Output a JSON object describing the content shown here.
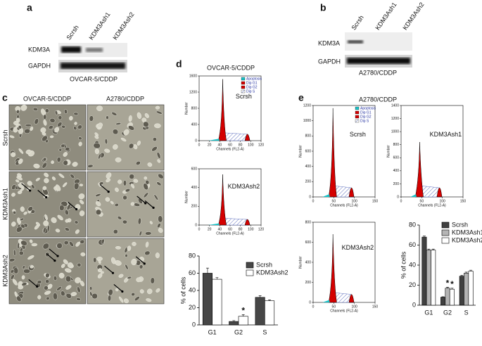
{
  "panel_a": {
    "letter": "a",
    "lanes": [
      "Scrsh",
      "KDM3Ash1",
      "KDM3Ash2"
    ],
    "rows": [
      "KDM3A",
      "GAPDH"
    ],
    "caption": "OVCAR-5/CDDP"
  },
  "panel_b": {
    "letter": "b",
    "lanes": [
      "Scrsh",
      "KDM3Ash1",
      "KDM3Ash2"
    ],
    "rows": [
      "KDM3A",
      "GAPDH"
    ],
    "caption": "A2780/CDDP"
  },
  "panel_c": {
    "letter": "c",
    "columns": [
      "OVCAR-5/CDDP",
      "A2780/CDDP"
    ],
    "rows": [
      "Scrsh",
      "KDM3Ash1",
      "KDM3Ash2"
    ]
  },
  "panel_d": {
    "letter": "d",
    "title": "OVCAR-5/CDDP",
    "histogram_legend": [
      "Apoptosis",
      "Dip G1",
      "Dip G2",
      "Dip S"
    ],
    "histograms": [
      {
        "label": "Scrsh",
        "xlabel": "Channels (FL2-A)",
        "ylabel": "Number",
        "xticks": [
          0,
          20,
          40,
          60,
          80,
          100,
          120
        ],
        "yticks": [
          0,
          400,
          800,
          1200,
          1600
        ]
      },
      {
        "label": "KDM3Ash2",
        "xlabel": "Channels (FL2-A)",
        "ylabel": "Number",
        "xticks": [
          0,
          20,
          40,
          60,
          80,
          100,
          120
        ],
        "yticks": [
          0,
          200,
          400,
          600
        ]
      }
    ],
    "bar_chart": {
      "ylabel": "% of cells",
      "ylim": [
        0,
        80
      ],
      "yticks": [
        0,
        20,
        40,
        60,
        80
      ],
      "categories": [
        "G1",
        "G2",
        "S"
      ],
      "series": [
        {
          "name": "Scrsh",
          "color": "#464646",
          "values": [
            60,
            4,
            32
          ],
          "errors": [
            6,
            1,
            2
          ]
        },
        {
          "name": "KDM3Ash2",
          "color": "#ffffff",
          "values": [
            53,
            10,
            28
          ],
          "errors": [
            2,
            2,
            1
          ]
        }
      ],
      "annotations": [
        "*"
      ]
    }
  },
  "panel_e": {
    "letter": "e",
    "title": "A2780/CDDP",
    "histogram_legend": [
      "Apoptosis",
      "Dip G1",
      "Dip G2",
      "Dip S"
    ],
    "histograms": [
      {
        "label": "Scrsh",
        "xlabel": "Channels (FL2-A)",
        "ylabel": "Number",
        "xticks": [
          0,
          50,
          100,
          150
        ],
        "yticks": [
          0,
          200,
          400,
          600,
          800,
          1000,
          1200
        ]
      },
      {
        "label": "KDM3Ash1",
        "xlabel": "Channels (FL2-A)",
        "ylabel": "Number",
        "xticks": [
          0,
          50,
          100,
          150
        ],
        "yticks": [
          0,
          200,
          400,
          600,
          800,
          1000,
          1200,
          1400
        ]
      },
      {
        "label": "KDM3Ash2",
        "xlabel": "Channels (FL2-A)",
        "ylabel": "Number",
        "xticks": [
          0,
          50,
          100,
          150
        ],
        "yticks": [
          0,
          200,
          400,
          600,
          800
        ]
      }
    ],
    "bar_chart": {
      "ylabel": "% of cells",
      "ylim": [
        0,
        80
      ],
      "yticks": [
        0,
        20,
        40,
        60,
        80
      ],
      "categories": [
        "G1",
        "G2",
        "S"
      ],
      "series": [
        {
          "name": "Scrsh",
          "color": "#404040",
          "values": [
            68,
            8,
            29
          ],
          "errors": [
            1,
            0.5,
            1
          ]
        },
        {
          "name": "KDM3Ash1",
          "color": "#b4b4b4",
          "values": [
            55,
            17,
            32
          ],
          "errors": [
            1,
            1,
            1
          ]
        },
        {
          "name": "KDM3Ash2",
          "color": "#ffffff",
          "values": [
            55,
            16,
            34
          ],
          "errors": [
            1,
            1,
            1
          ]
        }
      ],
      "annotations": [
        "*",
        "*"
      ]
    }
  }
}
